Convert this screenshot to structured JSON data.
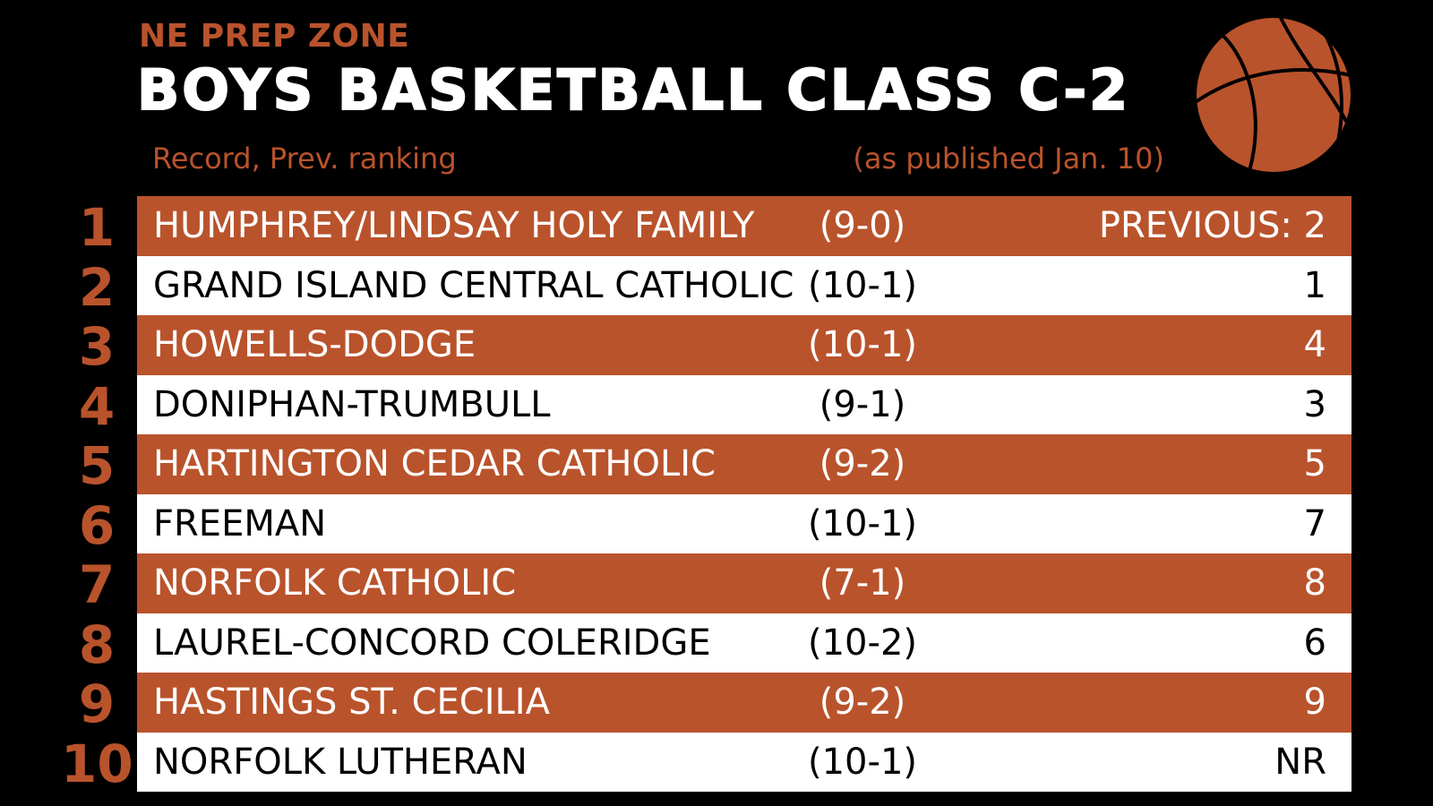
{
  "header": {
    "brand": "NE PREP ZONE",
    "title": "BOYS BASKETBALL CLASS C-2",
    "subtitle_left": "Record, Prev. ranking",
    "subtitle_right": "(as published Jan. 10)"
  },
  "colors": {
    "accent": "#b9532c",
    "background": "#000000",
    "row_alt": "#ffffff"
  },
  "icon": "basketball-icon",
  "rankings": [
    {
      "rank": "1",
      "team": "HUMPHREY/LINDSAY HOLY FAMILY",
      "record": "(9-0)",
      "previous": "PREVIOUS: 2"
    },
    {
      "rank": "2",
      "team": "GRAND ISLAND CENTRAL CATHOLIC",
      "record": "(10-1)",
      "previous": "1"
    },
    {
      "rank": "3",
      "team": "HOWELLS-DODGE",
      "record": "(10-1)",
      "previous": "4"
    },
    {
      "rank": "4",
      "team": "DONIPHAN-TRUMBULL",
      "record": "(9-1)",
      "previous": "3"
    },
    {
      "rank": "5",
      "team": "HARTINGTON CEDAR CATHOLIC",
      "record": "(9-2)",
      "previous": "5"
    },
    {
      "rank": "6",
      "team": "FREEMAN",
      "record": "(10-1)",
      "previous": "7"
    },
    {
      "rank": "7",
      "team": "NORFOLK CATHOLIC",
      "record": "(7-1)",
      "previous": "8"
    },
    {
      "rank": "8",
      "team": "LAUREL-CONCORD COLERIDGE",
      "record": "(10-2)",
      "previous": "6"
    },
    {
      "rank": "9",
      "team": "HASTINGS ST. CECILIA",
      "record": "(9-2)",
      "previous": "9"
    },
    {
      "rank": "10",
      "team": "NORFOLK LUTHERAN",
      "record": "(10-1)",
      "previous": "NR"
    }
  ]
}
